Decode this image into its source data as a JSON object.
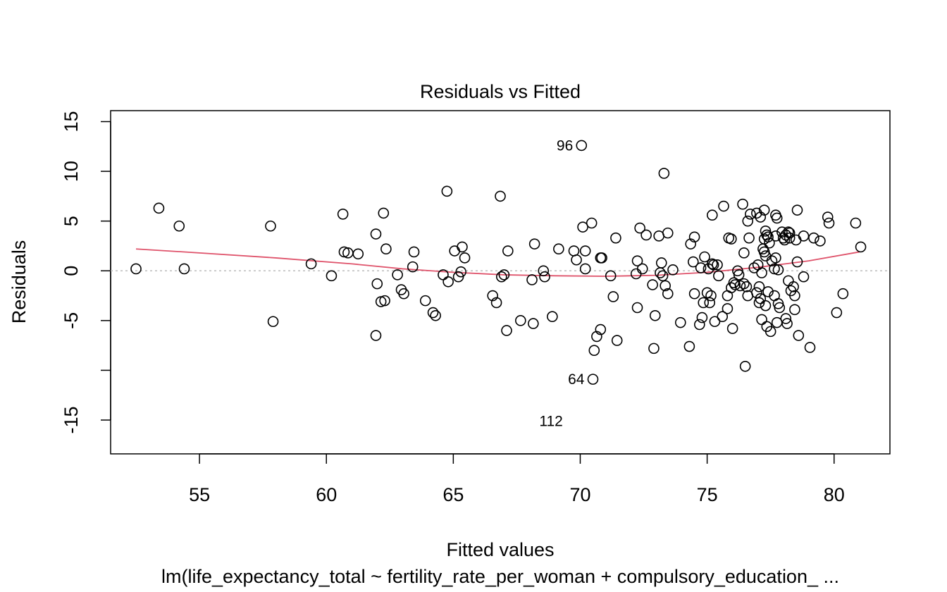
{
  "chart_data": {
    "type": "scatter",
    "title": "Residuals vs Fitted",
    "xlabel": "Fitted values",
    "ylabel": "Residuals",
    "subtitle": "lm(life_expectancy_total ~ fertility_rate_per_woman + compulsory_education_ ...",
    "xlim": [
      51.5,
      82.2
    ],
    "ylim": [
      -18.4,
      16.1
    ],
    "x_ticks": [
      55,
      60,
      65,
      70,
      75,
      80
    ],
    "y_ticks": [
      15,
      10,
      5,
      0,
      -5,
      -15
    ],
    "y_tick_marks": [
      15,
      10,
      5,
      0,
      -5,
      -10,
      -15
    ],
    "grid": false,
    "reference_line": {
      "y": 0,
      "style": "dotted",
      "color": "#bbbbbb"
    },
    "smooth_line_color": "#df536b",
    "point_color": "#000000",
    "smooth": [
      [
        52.5,
        2.2
      ],
      [
        55,
        1.8
      ],
      [
        58,
        1.3
      ],
      [
        61,
        0.7
      ],
      [
        63,
        0.2
      ],
      [
        65,
        -0.15
      ],
      [
        67,
        -0.4
      ],
      [
        69,
        -0.5
      ],
      [
        71,
        -0.55
      ],
      [
        73,
        -0.45
      ],
      [
        75,
        -0.15
      ],
      [
        77,
        0.35
      ],
      [
        79,
        1.0
      ],
      [
        81,
        1.9
      ]
    ],
    "labels": [
      {
        "text": "96",
        "x": 70.05,
        "y": 12.6
      },
      {
        "text": "64",
        "x": 70.5,
        "y": -10.9
      },
      {
        "text": "112",
        "x": 69.65,
        "y": -15.1
      }
    ],
    "points": [
      [
        52.5,
        0.2
      ],
      [
        53.4,
        6.3
      ],
      [
        54.2,
        4.5
      ],
      [
        54.4,
        0.2
      ],
      [
        57.8,
        4.5
      ],
      [
        57.9,
        -5.1
      ],
      [
        59.4,
        0.7
      ],
      [
        60.2,
        -0.5
      ],
      [
        60.65,
        5.7
      ],
      [
        60.7,
        1.9
      ],
      [
        60.85,
        1.8
      ],
      [
        61.25,
        1.7
      ],
      [
        61.95,
        3.7
      ],
      [
        62.0,
        -1.3
      ],
      [
        61.95,
        -6.5
      ],
      [
        62.15,
        -3.1
      ],
      [
        62.25,
        5.8
      ],
      [
        62.3,
        -3.0
      ],
      [
        62.35,
        2.2
      ],
      [
        62.8,
        -0.4
      ],
      [
        62.95,
        -1.9
      ],
      [
        63.05,
        -2.3
      ],
      [
        63.4,
        0.4
      ],
      [
        63.45,
        1.9
      ],
      [
        63.9,
        -3.0
      ],
      [
        64.2,
        -4.2
      ],
      [
        64.3,
        -4.5
      ],
      [
        64.6,
        -0.4
      ],
      [
        64.75,
        8.0
      ],
      [
        64.8,
        -1.1
      ],
      [
        65.05,
        2.0
      ],
      [
        65.2,
        -0.6
      ],
      [
        65.3,
        -0.1
      ],
      [
        65.35,
        2.4
      ],
      [
        65.45,
        1.3
      ],
      [
        66.55,
        -2.5
      ],
      [
        66.7,
        -3.2
      ],
      [
        66.85,
        7.5
      ],
      [
        66.9,
        -0.6
      ],
      [
        67.0,
        -0.4
      ],
      [
        67.1,
        -6.0
      ],
      [
        67.15,
        2.0
      ],
      [
        67.65,
        -5.0
      ],
      [
        68.1,
        -0.9
      ],
      [
        68.15,
        -5.3
      ],
      [
        68.2,
        2.7
      ],
      [
        68.55,
        0.0
      ],
      [
        68.6,
        -0.6
      ],
      [
        68.9,
        -4.6
      ],
      [
        69.15,
        2.2
      ],
      [
        69.75,
        2.0
      ],
      [
        69.85,
        1.1
      ],
      [
        70.05,
        12.6
      ],
      [
        70.1,
        4.4
      ],
      [
        70.2,
        2.0
      ],
      [
        70.2,
        0.2
      ],
      [
        70.45,
        4.8
      ],
      [
        70.5,
        -10.9
      ],
      [
        70.55,
        -8.0
      ],
      [
        70.65,
        -6.6
      ],
      [
        70.8,
        -5.9
      ],
      [
        70.8,
        1.3
      ],
      [
        70.85,
        1.3
      ],
      [
        71.2,
        -0.5
      ],
      [
        71.3,
        -2.6
      ],
      [
        71.4,
        3.3
      ],
      [
        71.45,
        -7.0
      ],
      [
        72.2,
        -0.3
      ],
      [
        72.25,
        -3.7
      ],
      [
        72.25,
        1.0
      ],
      [
        72.35,
        4.3
      ],
      [
        72.45,
        0.2
      ],
      [
        72.6,
        3.6
      ],
      [
        72.85,
        -1.4
      ],
      [
        72.9,
        -7.8
      ],
      [
        72.95,
        -4.5
      ],
      [
        73.1,
        3.5
      ],
      [
        73.15,
        -0.2
      ],
      [
        73.2,
        0.8
      ],
      [
        73.25,
        -0.5
      ],
      [
        73.3,
        9.8
      ],
      [
        73.35,
        -1.5
      ],
      [
        73.45,
        -2.3
      ],
      [
        73.45,
        3.8
      ],
      [
        73.65,
        0.1
      ],
      [
        73.95,
        -5.2
      ],
      [
        74.3,
        -7.6
      ],
      [
        74.35,
        2.7
      ],
      [
        74.45,
        0.9
      ],
      [
        74.5,
        3.4
      ],
      [
        74.5,
        -2.3
      ],
      [
        74.7,
        -5.4
      ],
      [
        74.75,
        0.3
      ],
      [
        74.8,
        -4.7
      ],
      [
        74.85,
        -3.2
      ],
      [
        74.9,
        1.4
      ],
      [
        75.0,
        -2.2
      ],
      [
        75.05,
        0.2
      ],
      [
        75.1,
        -3.2
      ],
      [
        75.15,
        -2.5
      ],
      [
        75.2,
        0.7
      ],
      [
        75.2,
        5.6
      ],
      [
        75.25,
        0.6
      ],
      [
        75.3,
        -5.1
      ],
      [
        75.4,
        0.6
      ],
      [
        75.45,
        -0.5
      ],
      [
        75.65,
        6.5
      ],
      [
        75.6,
        -4.6
      ],
      [
        75.8,
        -2.5
      ],
      [
        75.8,
        -3.8
      ],
      [
        75.85,
        3.3
      ],
      [
        75.95,
        3.2
      ],
      [
        75.95,
        -1.7
      ],
      [
        76.0,
        -5.8
      ],
      [
        76.05,
        -1.2
      ],
      [
        76.1,
        -1.4
      ],
      [
        76.2,
        0.0
      ],
      [
        76.25,
        -0.4
      ],
      [
        76.3,
        -1.5
      ],
      [
        76.4,
        6.7
      ],
      [
        76.45,
        1.8
      ],
      [
        76.45,
        -1.3
      ],
      [
        76.5,
        -9.6
      ],
      [
        76.55,
        -1.6
      ],
      [
        76.6,
        -2.5
      ],
      [
        76.6,
        5.0
      ],
      [
        76.65,
        3.3
      ],
      [
        76.7,
        5.7
      ],
      [
        76.85,
        0.3
      ],
      [
        76.95,
        5.8
      ],
      [
        76.95,
        -2.2
      ],
      [
        77.0,
        0.6
      ],
      [
        77.05,
        -3.2
      ],
      [
        77.05,
        -1.6
      ],
      [
        77.1,
        -2.8
      ],
      [
        77.1,
        5.4
      ],
      [
        77.15,
        -4.9
      ],
      [
        77.15,
        -0.2
      ],
      [
        77.2,
        2.2
      ],
      [
        77.25,
        6.1
      ],
      [
        77.25,
        1.9
      ],
      [
        77.25,
        3.2
      ],
      [
        77.3,
        -3.5
      ],
      [
        77.3,
        4.0
      ],
      [
        77.3,
        1.5
      ],
      [
        77.35,
        3.6
      ],
      [
        77.35,
        -5.6
      ],
      [
        77.4,
        3.4
      ],
      [
        77.4,
        -2.1
      ],
      [
        77.45,
        2.8
      ],
      [
        77.5,
        -6.1
      ],
      [
        77.55,
        1.0
      ],
      [
        77.65,
        -2.5
      ],
      [
        77.65,
        0.2
      ],
      [
        77.7,
        5.6
      ],
      [
        77.7,
        1.3
      ],
      [
        77.7,
        3.5
      ],
      [
        77.75,
        5.3
      ],
      [
        77.75,
        -5.2
      ],
      [
        77.8,
        -3.3
      ],
      [
        77.8,
        0.1
      ],
      [
        77.85,
        -3.7
      ],
      [
        77.95,
        3.9
      ],
      [
        78.0,
        3.3
      ],
      [
        78.05,
        3.1
      ],
      [
        78.1,
        3.6
      ],
      [
        78.1,
        -4.8
      ],
      [
        78.15,
        -5.3
      ],
      [
        78.2,
        3.9
      ],
      [
        78.2,
        -1.0
      ],
      [
        78.25,
        3.8
      ],
      [
        78.25,
        3.3
      ],
      [
        78.3,
        -2.0
      ],
      [
        78.4,
        -1.6
      ],
      [
        78.45,
        -2.5
      ],
      [
        78.45,
        -3.9
      ],
      [
        78.5,
        3.1
      ],
      [
        78.55,
        0.9
      ],
      [
        78.55,
        6.1
      ],
      [
        78.6,
        -6.5
      ],
      [
        78.8,
        -0.6
      ],
      [
        78.8,
        3.5
      ],
      [
        79.05,
        -7.7
      ],
      [
        79.2,
        3.3
      ],
      [
        79.45,
        3.0
      ],
      [
        79.75,
        5.4
      ],
      [
        79.8,
        4.8
      ],
      [
        80.1,
        -4.2
      ],
      [
        80.35,
        -2.3
      ],
      [
        80.85,
        4.8
      ],
      [
        81.05,
        2.4
      ]
    ]
  }
}
